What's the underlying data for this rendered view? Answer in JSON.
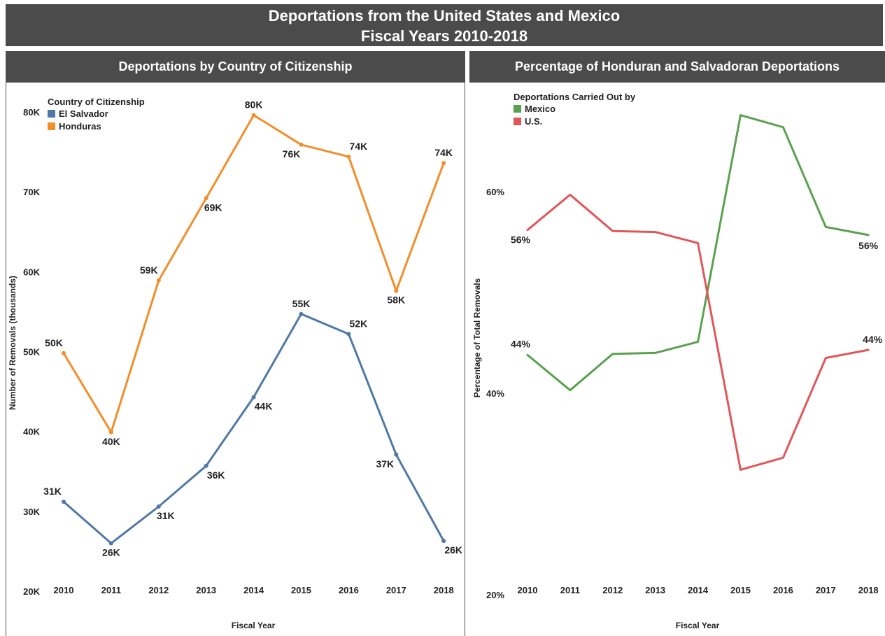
{
  "header": {
    "title_line1": "Deportations from the United States and Mexico",
    "title_line2": "Fiscal Years 2010-2018"
  },
  "chart_data": [
    {
      "type": "line",
      "title": "Deportations by Country of Citizenship",
      "xlabel": "Fiscal Year",
      "ylabel": "Number of Removals (thousands)",
      "ylim": [
        20,
        80
      ],
      "yticks": [
        "20K",
        "30K",
        "40K",
        "50K",
        "60K",
        "70K",
        "80K"
      ],
      "ytick_values": [
        20,
        30,
        40,
        50,
        60,
        70,
        80
      ],
      "x": [
        "2010",
        "2011",
        "2012",
        "2013",
        "2014",
        "2015",
        "2016",
        "2017",
        "2018"
      ],
      "legend_title": "Country of Citizenship",
      "legend_position": "top-left",
      "grid": false,
      "series": [
        {
          "name": "El Salvador",
          "color": "#4e79a7",
          "values": [
            31.2,
            26.0,
            30.6,
            35.7,
            44.3,
            54.7,
            52.2,
            37.1,
            26.3
          ],
          "labels": [
            "31K",
            "26K",
            "31K",
            "36K",
            "44K",
            "55K",
            "52K",
            "37K",
            "26K"
          ]
        },
        {
          "name": "Honduras",
          "color": "#f28e2b",
          "values": [
            49.8,
            39.9,
            58.9,
            69.2,
            79.6,
            75.9,
            74.4,
            57.6,
            73.6
          ],
          "labels": [
            "50K",
            "40K",
            "59K",
            "69K",
            "80K",
            "76K",
            "74K",
            "58K",
            "74K"
          ]
        }
      ]
    },
    {
      "type": "line",
      "title": "Percentage of Honduran and Salvadoran Deportations",
      "xlabel": "Fiscal Year",
      "ylabel": "Percentage of Total Removals",
      "ylim": [
        20,
        70
      ],
      "yticks": [
        "20%",
        "40%",
        "60%"
      ],
      "ytick_values": [
        20,
        40,
        60
      ],
      "x": [
        "2010",
        "2011",
        "2012",
        "2013",
        "2014",
        "2015",
        "2016",
        "2017",
        "2018"
      ],
      "legend_title": "Deportations Carried Out by",
      "legend_position": "top-left",
      "grid": false,
      "series": [
        {
          "name": "Mexico",
          "color": "#59a14f",
          "values": [
            43.8,
            40.3,
            43.9,
            44.0,
            45.1,
            67.6,
            66.4,
            56.5,
            55.7
          ],
          "labels": [
            "44%",
            "",
            "",
            "",
            "",
            "",
            "",
            "",
            "56%"
          ]
        },
        {
          "name": "U.S.",
          "color": "#e15759",
          "values": [
            56.2,
            59.7,
            56.1,
            56.0,
            54.9,
            32.4,
            33.6,
            43.5,
            44.3
          ],
          "labels": [
            "56%",
            "",
            "",
            "",
            "",
            "",
            "",
            "",
            "44%"
          ]
        }
      ]
    }
  ]
}
